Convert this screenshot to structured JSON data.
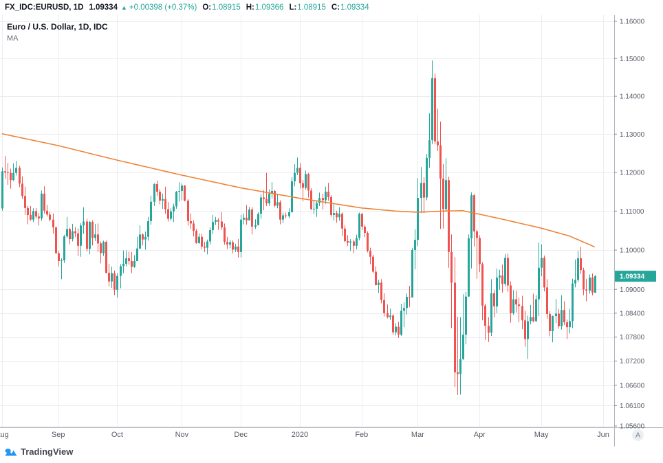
{
  "header": {
    "symbol": "FX_IDC:EURUSD, 1D",
    "last_price": "1.09334",
    "arrow": "▲",
    "change": "+0.00398 (+0.37%)",
    "ohlc": [
      {
        "label": "O:",
        "value": "1.08915"
      },
      {
        "label": "H:",
        "value": "1.09366"
      },
      {
        "label": "L:",
        "value": "1.08915"
      },
      {
        "label": "C:",
        "value": "1.09334"
      }
    ]
  },
  "legend": {
    "title": "Euro / U.S. Dollar, 1D, IDC",
    "indicator": "MA"
  },
  "colors": {
    "accent_up": "#26a69a",
    "accent_down": "#ef5350",
    "ma_line": "#ef8336",
    "badge_bg": "#26a69a",
    "badge_text": "#ffffff",
    "grid": "#ebedf1",
    "axis_border": "#b2b5be",
    "axis_text": "#555a64"
  },
  "footer": {
    "logo_text": "TradingView",
    "auto_button_label": "A"
  },
  "chart_data": {
    "type": "candlestick",
    "title": "Euro / U.S. Dollar, 1D, IDC",
    "symbol": "FX_IDC:EURUSD",
    "interval": "1D",
    "scale": "log",
    "last_price": 1.09334,
    "last_price_label": "1.09334",
    "last": {
      "o": 1.08915,
      "h": 1.09366,
      "l": 1.08915,
      "c": 1.09334,
      "change": 0.00398,
      "change_pct": 0.37
    },
    "y_axis_ticks": [
      "1.16000",
      "1.15000",
      "1.14000",
      "1.13000",
      "1.12000",
      "1.11000",
      "1.10000",
      "1.09000",
      "1.08400",
      "1.07800",
      "1.07200",
      "1.06600",
      "1.06100",
      "1.05600"
    ],
    "x_axis_ticks": [
      {
        "label": "Aug",
        "index": 0
      },
      {
        "label": "Sep",
        "index": 20
      },
      {
        "label": "Oct",
        "index": 41
      },
      {
        "label": "Nov",
        "index": 64
      },
      {
        "label": "Dec",
        "index": 85
      },
      {
        "label": "2020",
        "index": 106
      },
      {
        "label": "Feb",
        "index": 128
      },
      {
        "label": "Mar",
        "index": 148
      },
      {
        "label": "Apr",
        "index": 170
      },
      {
        "label": "May",
        "index": 192
      },
      {
        "label": "Jun",
        "index": 214
      }
    ],
    "candles": [
      [
        1.1107,
        1.1213,
        1.1101,
        1.1203
      ],
      [
        1.1203,
        1.1243,
        1.1183,
        1.12
      ],
      [
        1.12,
        1.1225,
        1.1168,
        1.1199
      ],
      [
        1.1199,
        1.121,
        1.1158,
        1.118
      ],
      [
        1.118,
        1.1224,
        1.1178,
        1.1199
      ],
      [
        1.1199,
        1.123,
        1.1192,
        1.1212
      ],
      [
        1.1212,
        1.1217,
        1.1162,
        1.1171
      ],
      [
        1.1171,
        1.119,
        1.1131,
        1.1139
      ],
      [
        1.1139,
        1.1163,
        1.109,
        1.1108
      ],
      [
        1.1108,
        1.1114,
        1.1066,
        1.109
      ],
      [
        1.109,
        1.1113,
        1.1075,
        1.1078
      ],
      [
        1.1078,
        1.1107,
        1.1072,
        1.11
      ],
      [
        1.11,
        1.1108,
        1.1081,
        1.1086
      ],
      [
        1.1086,
        1.1095,
        1.1063,
        1.1081
      ],
      [
        1.1081,
        1.1153,
        1.1075,
        1.1145
      ],
      [
        1.1145,
        1.1164,
        1.1094,
        1.1101
      ],
      [
        1.1101,
        1.1116,
        1.1086,
        1.1091
      ],
      [
        1.1091,
        1.1098,
        1.1073,
        1.1078
      ],
      [
        1.1078,
        1.1094,
        1.1042,
        1.1058
      ],
      [
        1.1058,
        1.106,
        1.099,
        1.0992
      ],
      [
        1.0992,
        1.0998,
        1.0958,
        1.0972
      ],
      [
        1.0972,
        1.0979,
        1.0926,
        1.0974
      ],
      [
        1.0974,
        1.1039,
        1.0967,
        1.1035
      ],
      [
        1.1035,
        1.1085,
        1.1031,
        1.1054
      ],
      [
        1.1054,
        1.1057,
        1.1015,
        1.1028
      ],
      [
        1.1028,
        1.1067,
        1.1022,
        1.1048
      ],
      [
        1.1048,
        1.1059,
        1.1033,
        1.1043
      ],
      [
        1.1043,
        1.1055,
        1.0985,
        1.1011
      ],
      [
        1.1011,
        1.1069,
        1.0983,
        1.1063
      ],
      [
        1.1063,
        1.111,
        1.1042,
        1.1073
      ],
      [
        1.1073,
        1.108,
        1.0996,
        1.1003
      ],
      [
        1.1003,
        1.1075,
        1.0989,
        1.1072
      ],
      [
        1.1072,
        1.1076,
        1.1012,
        1.1031
      ],
      [
        1.1031,
        1.1067,
        1.1023,
        1.104
      ],
      [
        1.104,
        1.1068,
        1.0995,
        1.1017
      ],
      [
        1.1017,
        1.1022,
        1.0966,
        1.0992
      ],
      [
        1.0992,
        1.1024,
        1.0985,
        1.1021
      ],
      [
        1.1021,
        1.1024,
        1.094,
        1.0942
      ],
      [
        1.0942,
        1.0965,
        1.0908,
        1.092
      ],
      [
        1.092,
        1.0958,
        1.0904,
        1.0941
      ],
      [
        1.0941,
        1.0948,
        1.0885,
        1.0899
      ],
      [
        1.0899,
        1.0941,
        1.0879,
        1.0934
      ],
      [
        1.0934,
        1.0964,
        1.0903,
        1.0959
      ],
      [
        1.0959,
        1.0999,
        1.0941,
        1.0965
      ],
      [
        1.0965,
        1.0999,
        1.0958,
        1.0979
      ],
      [
        1.0979,
        1.0996,
        1.0963,
        1.0972
      ],
      [
        1.0972,
        1.0995,
        1.0941,
        1.0957
      ],
      [
        1.0957,
        1.0987,
        1.0955,
        1.0972
      ],
      [
        1.0972,
        1.1034,
        1.0972,
        1.1004
      ],
      [
        1.1004,
        1.1063,
        1.1002,
        1.104
      ],
      [
        1.104,
        1.1043,
        1.1012,
        1.1027
      ],
      [
        1.1027,
        1.1047,
        1.1001,
        1.1034
      ],
      [
        1.1034,
        1.1085,
        1.1024,
        1.1074
      ],
      [
        1.1074,
        1.114,
        1.1065,
        1.1124
      ],
      [
        1.1124,
        1.1172,
        1.1113,
        1.117
      ],
      [
        1.117,
        1.1179,
        1.1139,
        1.115
      ],
      [
        1.115,
        1.1157,
        1.1117,
        1.1127
      ],
      [
        1.1127,
        1.1145,
        1.1106,
        1.1131
      ],
      [
        1.1131,
        1.1163,
        1.1093,
        1.1105
      ],
      [
        1.1105,
        1.1123,
        1.1073,
        1.108
      ],
      [
        1.108,
        1.1107,
        1.1075,
        1.1099
      ],
      [
        1.1099,
        1.1119,
        1.1072,
        1.1112
      ],
      [
        1.1112,
        1.1152,
        1.1106,
        1.115
      ],
      [
        1.115,
        1.1175,
        1.1125,
        1.1152
      ],
      [
        1.1152,
        1.1172,
        1.1128,
        1.1166
      ],
      [
        1.1166,
        1.1167,
        1.1125,
        1.1127
      ],
      [
        1.1127,
        1.1131,
        1.1063,
        1.1074
      ],
      [
        1.1074,
        1.1094,
        1.1054,
        1.1068
      ],
      [
        1.1068,
        1.1076,
        1.1035,
        1.1049
      ],
      [
        1.1049,
        1.1054,
        1.1016,
        1.1018
      ],
      [
        1.1018,
        1.1043,
        1.1016,
        1.1034
      ],
      [
        1.1034,
        1.1042,
        1.1002,
        1.1009
      ],
      [
        1.1009,
        1.1021,
        1.0995,
        1.1006
      ],
      [
        1.1006,
        1.1027,
        1.0989,
        1.1022
      ],
      [
        1.1022,
        1.1058,
        1.1014,
        1.1051
      ],
      [
        1.1051,
        1.109,
        1.1041,
        1.1072
      ],
      [
        1.1072,
        1.1085,
        1.1064,
        1.1077
      ],
      [
        1.1077,
        1.1082,
        1.1052,
        1.1073
      ],
      [
        1.1073,
        1.1097,
        1.1052,
        1.1058
      ],
      [
        1.1058,
        1.1068,
        1.1014,
        1.1021
      ],
      [
        1.1021,
        1.1034,
        1.1003,
        1.1014
      ],
      [
        1.1014,
        1.1026,
        1.1005,
        1.102
      ],
      [
        1.102,
        1.1025,
        1.0992,
        1.1001
      ],
      [
        1.1001,
        1.1016,
        1.0995,
        1.1009
      ],
      [
        1.1009,
        1.1028,
        1.0981,
        1.0995
      ],
      [
        1.0995,
        1.109,
        1.0981,
        1.1078
      ],
      [
        1.1078,
        1.1094,
        1.1066,
        1.1083
      ],
      [
        1.1083,
        1.1116,
        1.1065,
        1.1076
      ],
      [
        1.1076,
        1.1111,
        1.1076,
        1.1104
      ],
      [
        1.1104,
        1.111,
        1.104,
        1.106
      ],
      [
        1.106,
        1.1079,
        1.1054,
        1.1064
      ],
      [
        1.1064,
        1.1097,
        1.1063,
        1.1093
      ],
      [
        1.1093,
        1.1144,
        1.108,
        1.1135
      ],
      [
        1.1135,
        1.1154,
        1.1102,
        1.1131
      ],
      [
        1.1131,
        1.1199,
        1.1113,
        1.112
      ],
      [
        1.112,
        1.1156,
        1.1113,
        1.1145
      ],
      [
        1.1145,
        1.1175,
        1.1133,
        1.1152
      ],
      [
        1.1152,
        1.1154,
        1.111,
        1.1114
      ],
      [
        1.1114,
        1.1145,
        1.1107,
        1.1123
      ],
      [
        1.1123,
        1.1128,
        1.1066,
        1.1078
      ],
      [
        1.1078,
        1.1096,
        1.1069,
        1.1089
      ],
      [
        1.1089,
        1.1096,
        1.1081,
        1.1087
      ],
      [
        1.1087,
        1.1107,
        1.1082,
        1.1097
      ],
      [
        1.1097,
        1.1188,
        1.1096,
        1.1177
      ],
      [
        1.1177,
        1.1221,
        1.1164,
        1.1199
      ],
      [
        1.1199,
        1.1239,
        1.1193,
        1.1212
      ],
      [
        1.1212,
        1.1224,
        1.1158,
        1.1172
      ],
      [
        1.1172,
        1.118,
        1.1125,
        1.116
      ],
      [
        1.116,
        1.1205,
        1.1155,
        1.1196
      ],
      [
        1.1196,
        1.1199,
        1.1135,
        1.1153
      ],
      [
        1.1153,
        1.1159,
        1.1103,
        1.1105
      ],
      [
        1.1105,
        1.1127,
        1.1092,
        1.1106
      ],
      [
        1.1106,
        1.1128,
        1.1085,
        1.1121
      ],
      [
        1.1121,
        1.1148,
        1.1113,
        1.1134
      ],
      [
        1.1134,
        1.1145,
        1.1104,
        1.1128
      ],
      [
        1.1128,
        1.1163,
        1.1119,
        1.115
      ],
      [
        1.115,
        1.1173,
        1.1127,
        1.1136
      ],
      [
        1.1136,
        1.1141,
        1.1085,
        1.109
      ],
      [
        1.109,
        1.1118,
        1.1076,
        1.1095
      ],
      [
        1.1095,
        1.1101,
        1.107,
        1.1084
      ],
      [
        1.1084,
        1.111,
        1.1075,
        1.1093
      ],
      [
        1.1093,
        1.1097,
        1.1036,
        1.1055
      ],
      [
        1.1055,
        1.1063,
        1.102,
        1.1023
      ],
      [
        1.1023,
        1.1038,
        1.101,
        1.1019
      ],
      [
        1.1019,
        1.1028,
        1.0998,
        1.1022
      ],
      [
        1.1022,
        1.1027,
        1.0992,
        1.1011
      ],
      [
        1.1011,
        1.1039,
        1.1002,
        1.1031
      ],
      [
        1.1031,
        1.1096,
        1.1025,
        1.1093
      ],
      [
        1.1093,
        1.1095,
        1.1051,
        1.106
      ],
      [
        1.106,
        1.1065,
        1.1033,
        1.1044
      ],
      [
        1.1044,
        1.1048,
        1.0994,
        1.0998
      ],
      [
        1.0998,
        1.1006,
        1.0964,
        1.0983
      ],
      [
        1.0983,
        1.0988,
        1.0941,
        1.0945
      ],
      [
        1.0945,
        1.0958,
        1.091,
        1.0911
      ],
      [
        1.0911,
        1.0924,
        1.0891,
        1.0917
      ],
      [
        1.0917,
        1.0926,
        1.0865,
        1.0873
      ],
      [
        1.0873,
        1.089,
        1.0832,
        1.084
      ],
      [
        1.084,
        1.0862,
        1.0827,
        1.083
      ],
      [
        1.083,
        1.0851,
        1.0823,
        1.0834
      ],
      [
        1.0834,
        1.0838,
        1.0786,
        1.0792
      ],
      [
        1.0792,
        1.0815,
        1.0784,
        1.0806
      ],
      [
        1.0806,
        1.0818,
        1.0778,
        1.0786
      ],
      [
        1.0786,
        1.0863,
        1.0783,
        1.0846
      ],
      [
        1.0846,
        1.0867,
        1.0805,
        1.0853
      ],
      [
        1.0853,
        1.089,
        1.0836,
        1.0881
      ],
      [
        1.0881,
        1.0909,
        1.0855,
        1.088
      ],
      [
        1.088,
        1.1006,
        1.0879,
        1.1
      ],
      [
        1.1,
        1.1053,
        1.0951,
        1.1026
      ],
      [
        1.1026,
        1.1185,
        1.101,
        1.1134
      ],
      [
        1.1134,
        1.1214,
        1.1095,
        1.1173
      ],
      [
        1.1173,
        1.1187,
        1.1095,
        1.1135
      ],
      [
        1.1135,
        1.1248,
        1.1128,
        1.1238
      ],
      [
        1.1238,
        1.1355,
        1.1212,
        1.1284
      ],
      [
        1.1284,
        1.1495,
        1.1274,
        1.1448
      ],
      [
        1.1448,
        1.146,
        1.1273,
        1.1281
      ],
      [
        1.1281,
        1.1367,
        1.1256,
        1.1271
      ],
      [
        1.1271,
        1.1333,
        1.1054,
        1.1184
      ],
      [
        1.1184,
        1.1222,
        1.1055,
        1.1105
      ],
      [
        1.1105,
        1.1237,
        1.1101,
        1.118
      ],
      [
        1.118,
        1.1189,
        1.0955,
        1.0995
      ],
      [
        1.0995,
        1.104,
        1.0802,
        1.0917
      ],
      [
        1.0917,
        1.0982,
        1.0656,
        1.0692
      ],
      [
        1.0692,
        1.0831,
        1.0636,
        1.0688
      ],
      [
        1.0688,
        1.083,
        1.0637,
        1.0725
      ],
      [
        1.0725,
        1.0888,
        1.0723,
        1.0786
      ],
      [
        1.0786,
        1.0894,
        1.0762,
        1.0882
      ],
      [
        1.0882,
        1.104,
        1.0881,
        1.103
      ],
      [
        1.103,
        1.1148,
        1.0953,
        1.1141
      ],
      [
        1.1141,
        1.1144,
        1.1009,
        1.1048
      ],
      [
        1.1048,
        1.1052,
        1.0927,
        1.1031
      ],
      [
        1.1031,
        1.1038,
        1.0944,
        1.0964
      ],
      [
        1.0964,
        1.0969,
        1.0822,
        1.0859
      ],
      [
        1.0859,
        1.0864,
        1.0773,
        1.0808
      ],
      [
        1.0808,
        1.083,
        1.0768,
        1.0791
      ],
      [
        1.0791,
        1.0926,
        1.0783,
        1.089
      ],
      [
        1.089,
        1.0898,
        1.083,
        1.0857
      ],
      [
        1.0857,
        1.0953,
        1.084,
        1.093
      ],
      [
        1.093,
        1.095,
        1.0899,
        1.0935
      ],
      [
        1.0935,
        1.0963,
        1.0892,
        1.0914
      ],
      [
        1.0914,
        1.099,
        1.0908,
        1.098
      ],
      [
        1.098,
        1.0991,
        1.0894,
        1.091
      ],
      [
        1.091,
        1.092,
        1.0816,
        1.084
      ],
      [
        1.084,
        1.0898,
        1.0836,
        1.0875
      ],
      [
        1.0875,
        1.0897,
        1.0842,
        1.0862
      ],
      [
        1.0862,
        1.0879,
        1.0817,
        1.0858
      ],
      [
        1.0858,
        1.0884,
        1.08,
        1.0822
      ],
      [
        1.0822,
        1.0846,
        1.0756,
        1.0775
      ],
      [
        1.0775,
        1.0834,
        1.0726,
        1.082
      ],
      [
        1.082,
        1.0861,
        1.0812,
        1.083
      ],
      [
        1.083,
        1.0889,
        1.0817,
        1.082
      ],
      [
        1.082,
        1.0885,
        1.0818,
        1.0875
      ],
      [
        1.0875,
        1.1019,
        1.0833,
        1.0955
      ],
      [
        1.0955,
        1.1015,
        1.0933,
        1.098
      ],
      [
        1.098,
        1.0986,
        1.0895,
        1.0905
      ],
      [
        1.0905,
        1.0926,
        1.0826,
        1.0838
      ],
      [
        1.0838,
        1.0845,
        1.0782,
        1.0795
      ],
      [
        1.0795,
        1.0834,
        1.0767,
        1.0833
      ],
      [
        1.0833,
        1.0876,
        1.0815,
        1.0839
      ],
      [
        1.0839,
        1.0851,
        1.0801,
        1.0807
      ],
      [
        1.0807,
        1.0885,
        1.0799,
        1.0848
      ],
      [
        1.0848,
        1.087,
        1.081,
        1.0817
      ],
      [
        1.0817,
        1.0824,
        1.0775,
        1.0805
      ],
      [
        1.0805,
        1.0851,
        1.0789,
        1.082
      ],
      [
        1.082,
        1.0927,
        1.0802,
        1.0915
      ],
      [
        1.0915,
        1.0976,
        1.0905,
        1.0924
      ],
      [
        1.0924,
        1.0998,
        1.0918,
        1.0979
      ],
      [
        1.0979,
        1.1008,
        1.0939,
        1.0949
      ],
      [
        1.0949,
        1.0955,
        1.0885,
        1.09
      ],
      [
        1.09,
        1.0927,
        1.087,
        1.0897
      ],
      [
        1.0897,
        1.0938,
        1.0889,
        1.093
      ],
      [
        1.093,
        1.094,
        1.0885,
        1.0892
      ],
      [
        1.08915,
        1.09366,
        1.08915,
        1.09334
      ]
    ],
    "ma_control_points": [
      [
        0,
        1.1301
      ],
      [
        20,
        1.127
      ],
      [
        41,
        1.1232
      ],
      [
        64,
        1.1193
      ],
      [
        85,
        1.116
      ],
      [
        106,
        1.1133
      ],
      [
        128,
        1.1108
      ],
      [
        140,
        1.11
      ],
      [
        148,
        1.1097
      ],
      [
        157,
        1.11
      ],
      [
        164,
        1.1101
      ],
      [
        170,
        1.1092
      ],
      [
        180,
        1.1076
      ],
      [
        192,
        1.1056
      ],
      [
        202,
        1.1036
      ],
      [
        211,
        1.1008
      ]
    ]
  }
}
